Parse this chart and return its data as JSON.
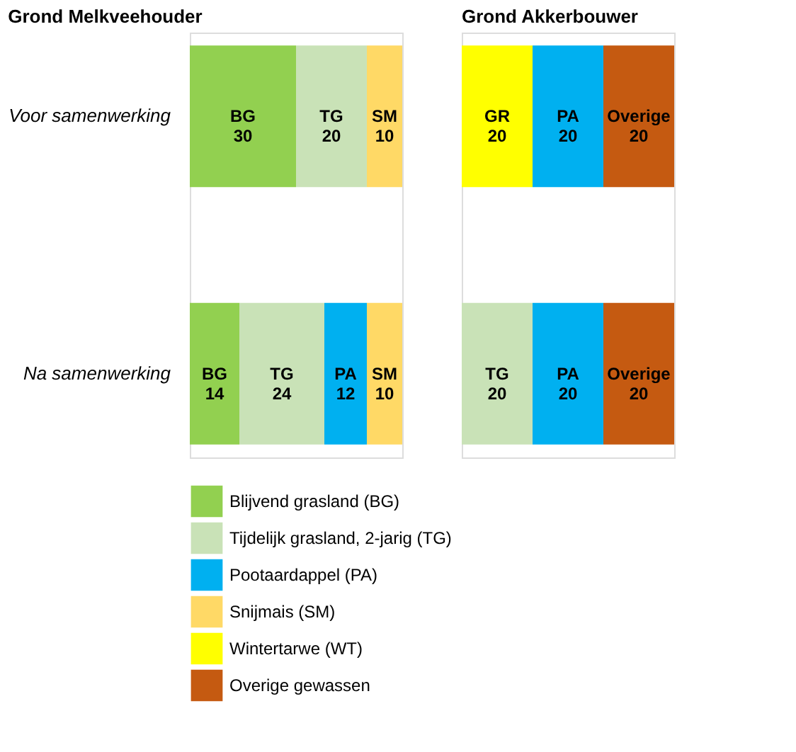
{
  "chart_data": [
    {
      "type": "bar",
      "orientation": "horizontal",
      "stacked": true,
      "title": "Grond Melkveehouder",
      "categories": [
        "Voor samenwerking",
        "Na samenwerking"
      ],
      "tick_labels": "y",
      "legend": "bottom",
      "series": [
        {
          "name": "Blijvend grasland (BG)",
          "color": "#92d050",
          "values": [
            30,
            14
          ],
          "value_labels": [
            "BG 30",
            "BG 14"
          ]
        },
        {
          "name": "Tijdelijk grasland, 2-jarig (TG)",
          "color": "#c9e2b7",
          "values": [
            20,
            24
          ],
          "value_labels": [
            "TG 20",
            "TG 24"
          ]
        },
        {
          "name": "Pootaardappel (PA)",
          "color": "#00b0f0",
          "values": [
            null,
            12
          ],
          "value_labels": [
            null,
            "PA 12"
          ]
        },
        {
          "name": "Snijmais (SM)",
          "color": "#ffd966",
          "values": [
            10,
            10
          ],
          "value_labels": [
            "SM 10",
            "SM 10"
          ]
        }
      ]
    },
    {
      "type": "bar",
      "orientation": "horizontal",
      "stacked": true,
      "title": "Grond Akkerbouwer",
      "categories": [
        null,
        null
      ],
      "tick_labels": false,
      "legend": "bottom",
      "series": [
        {
          "name": "Wintertarwe (WT)",
          "color": "#ffff00",
          "values": [
            20,
            null
          ],
          "value_labels": [
            "GR 20",
            null
          ]
        },
        {
          "name": "Tijdelijk grasland, 2-jarig (TG)",
          "color": "#c9e2b7",
          "values": [
            null,
            20
          ],
          "value_labels": [
            null,
            "TG 20"
          ]
        },
        {
          "name": "Pootaardappel (PA)",
          "color": "#00b0f0",
          "values": [
            20,
            20
          ],
          "value_labels": [
            "PA 20",
            "PA 20"
          ]
        },
        {
          "name": "Overige gewassen",
          "color": "#c55a11",
          "values": [
            20,
            20
          ],
          "value_labels": [
            "Overige 20",
            "Overige 20"
          ]
        }
      ]
    }
  ]
}
